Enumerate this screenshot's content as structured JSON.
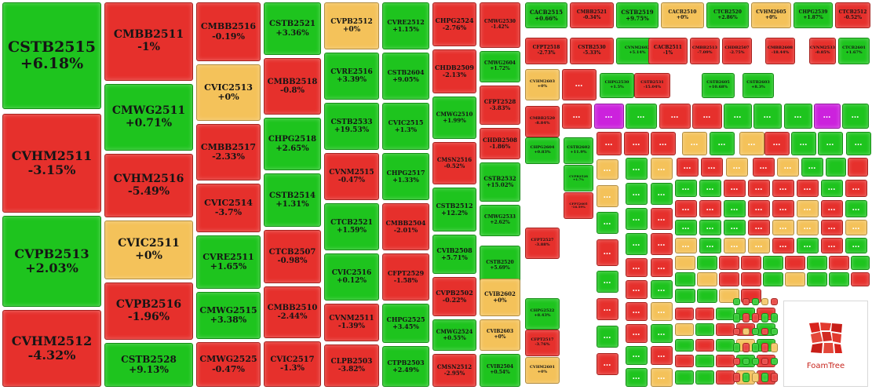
{
  "colors": {
    "up": "#1ec41e",
    "down": "#e6302c",
    "flat": "#f4c25a",
    "purple": "#cc22dd"
  },
  "branding": {
    "logo_text": "FoamTree",
    "logo_icon": "foamtree-logo-icon"
  },
  "chart_data": {
    "type": "treemap",
    "tiles": [
      {
        "name": "CSTB2515",
        "change": "+6.18%",
        "status": "up"
      },
      {
        "name": "CVHM2511",
        "change": "-3.15%",
        "status": "down"
      },
      {
        "name": "CVPB2513",
        "change": "+2.03%",
        "status": "up"
      },
      {
        "name": "CVHM2512",
        "change": "-4.32%",
        "status": "down"
      },
      {
        "name": "CMBB2511",
        "change": "-1%",
        "status": "down"
      },
      {
        "name": "CMWG2511",
        "change": "+0.71%",
        "status": "up"
      },
      {
        "name": "CVHM2516",
        "change": "-5.49%",
        "status": "down"
      },
      {
        "name": "CVIC2511",
        "change": "+0%",
        "status": "flat"
      },
      {
        "name": "CVPB2516",
        "change": "-1.96%",
        "status": "down"
      },
      {
        "name": "CSTB2528",
        "change": "+9.13%",
        "status": "up"
      },
      {
        "name": "CMBB2516",
        "change": "-0.19%",
        "status": "down"
      },
      {
        "name": "CVIC2513",
        "change": "+0%",
        "status": "flat"
      },
      {
        "name": "CMBB2517",
        "change": "-2.33%",
        "status": "down"
      },
      {
        "name": "CVIC2514",
        "change": "-3.7%",
        "status": "down"
      },
      {
        "name": "CVRE2511",
        "change": "+1.65%",
        "status": "up"
      },
      {
        "name": "CMWG2515",
        "change": "+3.38%",
        "status": "up"
      },
      {
        "name": "CMWG2525",
        "change": "-0.47%",
        "status": "down"
      },
      {
        "name": "CSTB2521",
        "change": "+3.36%",
        "status": "up"
      },
      {
        "name": "CMBB2518",
        "change": "-0.8%",
        "status": "down"
      },
      {
        "name": "CHPG2518",
        "change": "+2.65%",
        "status": "up"
      },
      {
        "name": "CSTB2514",
        "change": "+1.31%",
        "status": "up"
      },
      {
        "name": "CTCB2507",
        "change": "-0.98%",
        "status": "down"
      },
      {
        "name": "CMBB2510",
        "change": "-2.44%",
        "status": "down"
      },
      {
        "name": "CVIC2517",
        "change": "-1.3%",
        "status": "down"
      },
      {
        "name": "CVPB2512",
        "change": "+0%",
        "status": "flat"
      },
      {
        "name": "CVRE2516",
        "change": "+3.39%",
        "status": "up"
      },
      {
        "name": "CSTB2533",
        "change": "+19.53%",
        "status": "up"
      },
      {
        "name": "CVNM2515",
        "change": "-0.47%",
        "status": "down"
      },
      {
        "name": "CTCB2521",
        "change": "+1.59%",
        "status": "up"
      },
      {
        "name": "CVIC2516",
        "change": "+0.12%",
        "status": "up"
      },
      {
        "name": "CVNM2511",
        "change": "-1.39%",
        "status": "down"
      },
      {
        "name": "CLPB2503",
        "change": "-3.82%",
        "status": "down"
      },
      {
        "name": "CVRE2512",
        "change": "+1.15%",
        "status": "up"
      },
      {
        "name": "CSTB2604",
        "change": "+9.05%",
        "status": "up"
      },
      {
        "name": "CVIC2515",
        "change": "+1.3%",
        "status": "up"
      },
      {
        "name": "CHPG2517",
        "change": "+1.33%",
        "status": "up"
      },
      {
        "name": "CMBB2504",
        "change": "-2.01%",
        "status": "down"
      },
      {
        "name": "CFPT2529",
        "change": "-1.58%",
        "status": "down"
      },
      {
        "name": "CHPG2525",
        "change": "+3.45%",
        "status": "up"
      },
      {
        "name": "CTPB2503",
        "change": "+2.49%",
        "status": "up"
      },
      {
        "name": "CHPG2524",
        "change": "-2.76%",
        "status": "down"
      },
      {
        "name": "CHDB2509",
        "change": "-2.13%",
        "status": "down"
      },
      {
        "name": "CMWG2510",
        "change": "+1.99%",
        "status": "up"
      },
      {
        "name": "CMSN2516",
        "change": "-0.52%",
        "status": "down"
      },
      {
        "name": "CSTB2512",
        "change": "+12.2%",
        "status": "up"
      },
      {
        "name": "CVIB2508",
        "change": "+5.71%",
        "status": "up"
      },
      {
        "name": "CVPB2502",
        "change": "-0.22%",
        "status": "down"
      },
      {
        "name": "CMWG2524",
        "change": "+0.55%",
        "status": "up"
      },
      {
        "name": "CMSN2512",
        "change": "-2.95%",
        "status": "down"
      },
      {
        "name": "CMWG2530",
        "change": "-1.42%",
        "status": "down"
      },
      {
        "name": "CMWG2604",
        "change": "+1.72%",
        "status": "up"
      },
      {
        "name": "CFPT2528",
        "change": "-3.83%",
        "status": "down"
      },
      {
        "name": "CHDB2508",
        "change": "-1.86%",
        "status": "down"
      },
      {
        "name": "CSTB2532",
        "change": "+15.02%",
        "status": "up"
      },
      {
        "name": "CMWG2533",
        "change": "+2.62%",
        "status": "up"
      },
      {
        "name": "CSTB2520",
        "change": "+5.69%",
        "status": "up"
      },
      {
        "name": "CVIB2602",
        "change": "+0%",
        "status": "flat"
      },
      {
        "name": "CVIB2603",
        "change": "+0%",
        "status": "flat"
      },
      {
        "name": "CVIB2504",
        "change": "+0.54%",
        "status": "up"
      },
      {
        "name": "CACB2515",
        "change": "+0.66%",
        "status": "up"
      },
      {
        "name": "CMBB2521",
        "change": "-0.34%",
        "status": "down"
      },
      {
        "name": "CSTB2519",
        "change": "+9.75%",
        "status": "up"
      },
      {
        "name": "CACB2510",
        "change": "+0%",
        "status": "flat"
      },
      {
        "name": "CTCB2520",
        "change": "+2.86%",
        "status": "up"
      },
      {
        "name": "CVHM2605",
        "change": "+0%",
        "status": "flat"
      },
      {
        "name": "CHPG2539",
        "change": "+1.87%",
        "status": "up"
      },
      {
        "name": "CTCB2512",
        "change": "-0.52%",
        "status": "down"
      },
      {
        "name": "CFPT2518",
        "change": "-2.73%",
        "status": "down"
      },
      {
        "name": "CSTB2530",
        "change": "-5.33%",
        "status": "down"
      },
      {
        "name": "CVNM2602",
        "change": "+5.14%",
        "status": "up"
      },
      {
        "name": "CACB2511",
        "change": "-1%",
        "status": "down"
      },
      {
        "name": "CMBB2513",
        "change": "-7.09%",
        "status": "down"
      },
      {
        "name": "CHDB2507",
        "change": "-2.75%",
        "status": "down"
      },
      {
        "name": "CMBB2608",
        "change": "-18.44%",
        "status": "down"
      },
      {
        "name": "CVNM2533",
        "change": "-0.85%",
        "status": "down"
      },
      {
        "name": "CTCB2601",
        "change": "+1.67%",
        "status": "up"
      },
      {
        "name": "CVHM2603",
        "change": "+0%",
        "status": "flat"
      },
      {
        "name": "CHPG2530",
        "change": "+1.5%",
        "status": "up"
      },
      {
        "name": "CSTB2531",
        "change": "-15.04%",
        "status": "down"
      },
      {
        "name": "CSTB2605",
        "change": "+10.68%",
        "status": "up"
      },
      {
        "name": "CSTB2603",
        "change": "+8.3%",
        "status": "up"
      },
      {
        "name": "CMBB2520",
        "change": "-8.84%",
        "status": "down"
      },
      {
        "name": "CHPG2604",
        "change": "+0.83%",
        "status": "up"
      },
      {
        "name": "CSTB2602",
        "change": "+11.9%",
        "status": "up"
      },
      {
        "name": "CVPB2528",
        "change": "+1.7%",
        "status": "up"
      },
      {
        "name": "CFPT2605",
        "change": "-16.59%",
        "status": "down"
      },
      {
        "name": "CFPT2527",
        "change": "-3.88%",
        "status": "down"
      },
      {
        "name": "CHPG2522",
        "change": "+8.43%",
        "status": "up"
      },
      {
        "name": "CFPT2517",
        "change": "-3.76%",
        "status": "down"
      },
      {
        "name": "CVHM2601",
        "change": "+0%",
        "status": "flat"
      },
      {
        "name": "CFPT2606",
        "change": "+0%",
        "status": "flat"
      }
    ]
  }
}
